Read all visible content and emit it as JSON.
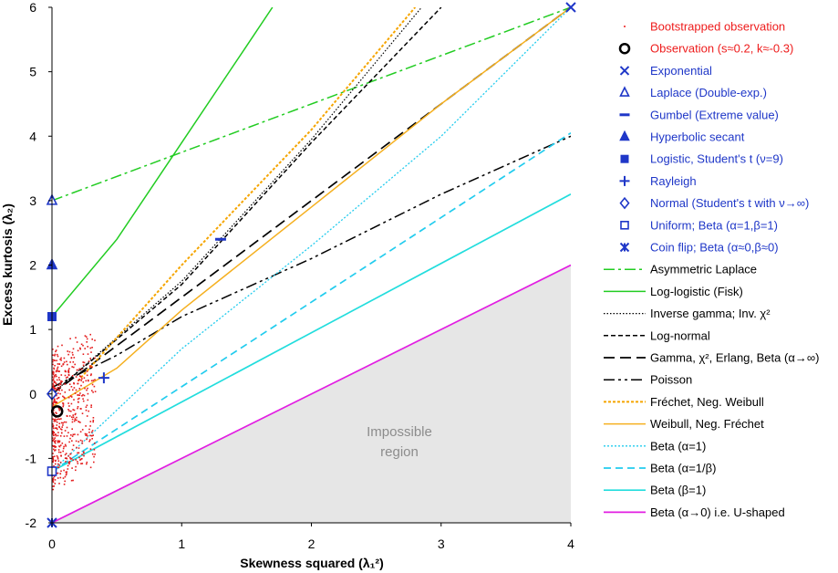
{
  "chart_data": {
    "type": "line",
    "xlabel": "Skewness squared (λ₁²)",
    "ylabel": "Excess kurtosis (λ₂)",
    "xlim": [
      0,
      4
    ],
    "ylim": [
      -2,
      6
    ],
    "x_ticks": [
      "0",
      "1",
      "2",
      "3",
      "4"
    ],
    "y_ticks": [
      "-2",
      "-1",
      "0",
      "1",
      "2",
      "3",
      "4",
      "5",
      "6"
    ],
    "grid": false,
    "legend_position": "right",
    "region_label": [
      "Impossible",
      "region"
    ],
    "point_series": [
      {
        "name": "Bootstrapped observation",
        "marker": "dot",
        "color": "#ee1c1c",
        "text_color": "#ee1c1c",
        "points": []
      },
      {
        "name": "Observation (s≈0.2, k≈-0.3)",
        "marker": "circle-open",
        "color": "#000000",
        "text_color": "#ee1c1c",
        "points": [
          [
            0.04,
            -0.27
          ]
        ]
      },
      {
        "name": "Exponential",
        "marker": "x",
        "color": "#1f37c8",
        "text_color": "#1f37c8",
        "points": [
          [
            4,
            6
          ]
        ]
      },
      {
        "name": "Laplace (Double-exp.)",
        "marker": "triangle-open",
        "color": "#1f37c8",
        "text_color": "#1f37c8",
        "points": [
          [
            0,
            3
          ]
        ]
      },
      {
        "name": "Gumbel (Extreme value)",
        "marker": "dash",
        "color": "#1f37c8",
        "text_color": "#1f37c8",
        "points": [
          [
            1.3,
            2.4
          ]
        ]
      },
      {
        "name": "Hyperbolic secant",
        "marker": "triangle",
        "color": "#1f37c8",
        "text_color": "#1f37c8",
        "points": [
          [
            0,
            2
          ]
        ]
      },
      {
        "name": "Logistic, Student's t (ν=9)",
        "marker": "square",
        "color": "#1f37c8",
        "text_color": "#1f37c8",
        "points": [
          [
            0,
            1.2
          ]
        ]
      },
      {
        "name": "Rayleigh",
        "marker": "plus",
        "color": "#1f37c8",
        "text_color": "#1f37c8",
        "points": [
          [
            0.4,
            0.25
          ]
        ]
      },
      {
        "name": "Normal (Student's t with ν→∞)",
        "marker": "diamond-open",
        "color": "#1f37c8",
        "text_color": "#1f37c8",
        "points": [
          [
            0,
            0
          ]
        ]
      },
      {
        "name": "Uniform; Beta (α=1,β=1)",
        "marker": "square-open",
        "color": "#1f37c8",
        "text_color": "#1f37c8",
        "points": [
          [
            0,
            -1.2
          ]
        ]
      },
      {
        "name": "Coin flip; Beta (α≈0,β≈0)",
        "marker": "asterisk",
        "color": "#1f37c8",
        "text_color": "#1f37c8",
        "points": [
          [
            0,
            -2
          ]
        ]
      }
    ],
    "line_series": [
      {
        "name": "Asymmetric Laplace",
        "color": "#22cc22",
        "dash": "12 4 3 4",
        "width": 1.5,
        "x": [
          0,
          4
        ],
        "y": [
          3,
          6
        ]
      },
      {
        "name": "Log-logistic (Fisk)",
        "color": "#22cc22",
        "dash": "",
        "width": 1.5,
        "x": [
          0,
          0.5,
          1.0,
          1.5,
          1.7
        ],
        "y": [
          1.2,
          2.4,
          3.9,
          5.4,
          6.0
        ]
      },
      {
        "name": "Inverse gamma; Inv. χ²",
        "color": "#000000",
        "dash": "1.5 2",
        "width": 1.2,
        "x": [
          0,
          1,
          2,
          2.85
        ],
        "y": [
          0,
          1.75,
          3.95,
          6.0
        ]
      },
      {
        "name": "Log-normal",
        "color": "#000000",
        "dash": "5 3",
        "width": 1.5,
        "x": [
          0,
          1,
          2,
          3
        ],
        "y": [
          0,
          1.7,
          3.9,
          6.0
        ]
      },
      {
        "name": "Gamma, χ², Erlang, Beta (α→∞)",
        "color": "#000000",
        "dash": "12 6",
        "width": 1.7,
        "x": [
          0,
          4
        ],
        "y": [
          0,
          6
        ]
      },
      {
        "name": "Poisson",
        "color": "#000000",
        "dash": "12 4 3 4 3 4",
        "width": 1.5,
        "x": [
          0,
          0.25,
          0.5,
          1,
          2,
          3,
          4
        ],
        "y": [
          0.1,
          0.35,
          0.6,
          1.2,
          2.1,
          3.1,
          4.0
        ]
      },
      {
        "name": "Fréchet, Neg. Weibull",
        "color": "#f5a500",
        "dash": "3 2",
        "width": 2,
        "x": [
          0.2,
          1,
          2,
          2.8
        ],
        "y": [
          0.2,
          2.0,
          4.1,
          6.0
        ]
      },
      {
        "name": "Weibull, Neg. Fréchet",
        "color": "#f5b020",
        "dash": "",
        "width": 1.5,
        "x": [
          0,
          0.5,
          1,
          2,
          3,
          4
        ],
        "y": [
          -0.2,
          0.4,
          1.3,
          2.9,
          4.5,
          6.0
        ]
      },
      {
        "name": "Beta (α=1)",
        "color": "#22ccee",
        "dash": "2 2",
        "width": 1.3,
        "x": [
          0,
          1,
          2,
          3,
          4
        ],
        "y": [
          -1.2,
          0.7,
          2.3,
          4.0,
          6.0
        ]
      },
      {
        "name": "Beta (α=1/β)",
        "color": "#22ccee",
        "dash": "8 5",
        "width": 1.7,
        "x": [
          0,
          4
        ],
        "y": [
          -1.2,
          4.05
        ]
      },
      {
        "name": "Beta (β=1)",
        "color": "#22dddd",
        "dash": "",
        "width": 1.7,
        "x": [
          0,
          4
        ],
        "y": [
          -1.2,
          3.1
        ]
      },
      {
        "name": "Beta (α→0) i.e. U-shaped",
        "color": "#e21ee2",
        "dash": "",
        "width": 1.7,
        "x": [
          0,
          4
        ],
        "y": [
          -2,
          2
        ]
      }
    ]
  }
}
